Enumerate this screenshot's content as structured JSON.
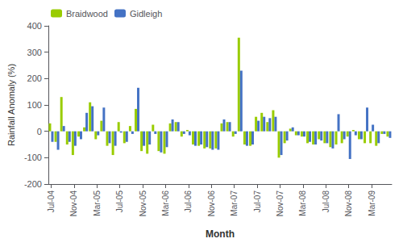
{
  "chart_data": {
    "type": "bar",
    "categories": [
      "Jul-04",
      null,
      null,
      null,
      "Nov-04",
      null,
      null,
      null,
      "Mar-05",
      null,
      null,
      null,
      "Jul-05",
      null,
      null,
      null,
      "Nov-05",
      null,
      null,
      null,
      "Mar-06",
      null,
      null,
      null,
      "Jul-06",
      null,
      null,
      null,
      "Nov-06",
      null,
      null,
      null,
      "Mar-07",
      null,
      null,
      null,
      "Jul-07",
      null,
      null,
      null,
      "Nov-07",
      null,
      null,
      null,
      "Mar-08",
      null,
      null,
      null,
      "Jul-08",
      null,
      null,
      null,
      "Nov-08",
      null,
      null,
      null,
      "Mar-09",
      null,
      null,
      null
    ],
    "series": [
      {
        "name": "Braidwood",
        "color": "#99cc00",
        "values": [
          30,
          -40,
          130,
          -50,
          -90,
          -20,
          15,
          110,
          -30,
          40,
          -55,
          -90,
          35,
          -45,
          20,
          85,
          -75,
          -85,
          25,
          -75,
          -85,
          30,
          35,
          -20,
          5,
          -50,
          -55,
          -65,
          -65,
          -65,
          30,
          35,
          -20,
          355,
          -50,
          -55,
          55,
          70,
          35,
          80,
          -100,
          -45,
          10,
          -15,
          -20,
          -45,
          -50,
          -30,
          -45,
          -60,
          -50,
          -45,
          -20,
          5,
          -30,
          -45,
          -45,
          -55,
          -10,
          -20
        ]
      },
      {
        "name": "Gidleigh",
        "color": "#4472c4",
        "values": [
          -40,
          -70,
          20,
          -40,
          -55,
          -30,
          70,
          95,
          -15,
          90,
          -45,
          -55,
          -5,
          -40,
          -10,
          165,
          -55,
          -50,
          -10,
          -80,
          -60,
          45,
          35,
          -10,
          -15,
          -55,
          -50,
          -60,
          -70,
          -70,
          45,
          35,
          -10,
          230,
          -55,
          -50,
          40,
          55,
          50,
          55,
          -90,
          -35,
          15,
          -15,
          -20,
          -40,
          -50,
          -35,
          -45,
          -65,
          65,
          -30,
          -105,
          -15,
          -30,
          90,
          25,
          -45,
          -10,
          -25
        ]
      }
    ],
    "xlabel": "Month",
    "ylabel": "Rainfall Anomaly (%)",
    "ylim": [
      -200,
      400
    ],
    "yticks": [
      -200,
      -100,
      0,
      100,
      200,
      300,
      400
    ],
    "grid": false,
    "legend": "upper left"
  }
}
